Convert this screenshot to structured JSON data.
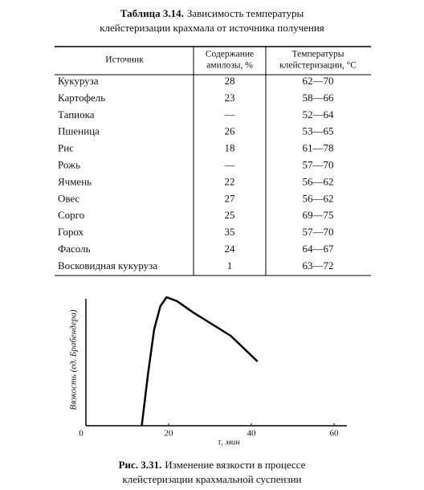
{
  "table_caption": {
    "label": "Таблица 3.14.",
    "lines": [
      "Зависимость температуры",
      "клейстеризации крахмала от источника получения"
    ]
  },
  "table": {
    "header": [
      [
        "Источник"
      ],
      [
        "Содержание",
        "амилозы, %"
      ],
      [
        "Температуры",
        "клейстеризации, °С"
      ]
    ],
    "rows": [
      [
        "Кукуруза",
        "28",
        "62—70"
      ],
      [
        "Картофель",
        "23",
        "58—66"
      ],
      [
        "Тапиока",
        "—",
        "52—64"
      ],
      [
        "Пшеница",
        "26",
        "53—65"
      ],
      [
        "Рис",
        "18",
        "61—78"
      ],
      [
        "Рожь",
        "—",
        "57—70"
      ],
      [
        "Ячмень",
        "22",
        "56—62"
      ],
      [
        "Овес",
        "27",
        "56—62"
      ],
      [
        "Сорго",
        "25",
        "69—75"
      ],
      [
        "Горох",
        "35",
        "57—70"
      ],
      [
        "Фасоль",
        "24",
        "64—67"
      ],
      [
        "Восковидная кукуруза",
        "1",
        "63—72"
      ]
    ]
  },
  "chart_data": {
    "type": "line",
    "x_label": "τ, мин",
    "y_label": "Вязкость (ед. Брабендера)",
    "x": [
      13.5,
      15,
      16.5,
      18,
      19.5,
      22,
      26,
      30,
      35,
      41.5
    ],
    "values": [
      0,
      40,
      75,
      93,
      100,
      97,
      88,
      80,
      70,
      50
    ],
    "xlim": [
      0,
      60
    ],
    "xticks": [
      0,
      20,
      40,
      60
    ],
    "ylim": [
      0,
      100
    ],
    "color": "#000000"
  },
  "figure_caption": {
    "label": "Рис. 3.31.",
    "lines": [
      "Изменение вязкости в процессе",
      "клейстеризации крахмальной суспензии"
    ]
  }
}
